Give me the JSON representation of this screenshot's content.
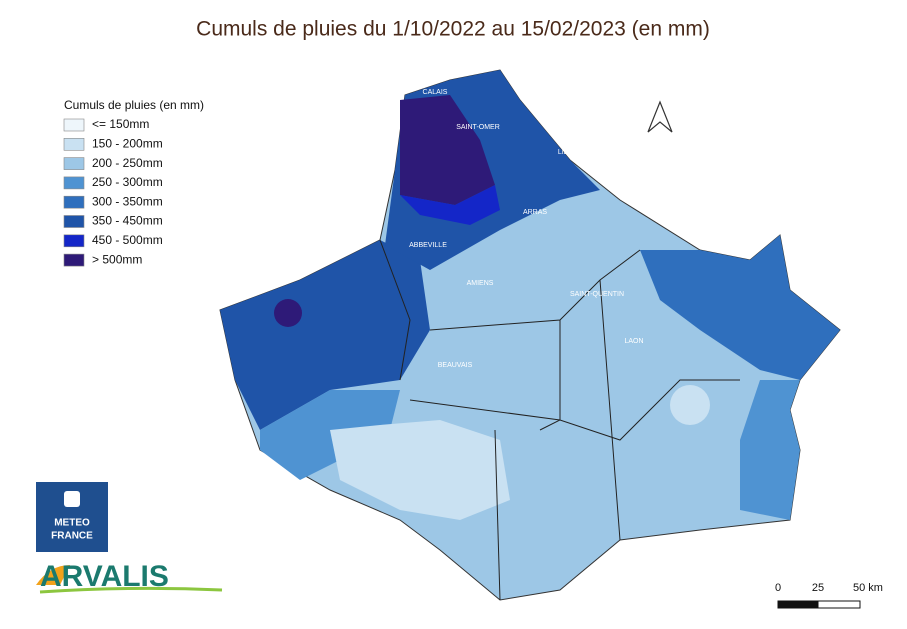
{
  "title": "Cumuls de pluies du 1/10/2022 au 15/02/2023 (en mm)",
  "legend": {
    "title": "Cumuls de pluies (en mm)",
    "items": [
      {
        "label": "<= 150mm",
        "color": "#eef6fb"
      },
      {
        "label": "150 - 200mm",
        "color": "#c9e1f2"
      },
      {
        "label": "200 - 250mm",
        "color": "#9dc7e6"
      },
      {
        "label": "250 - 300mm",
        "color": "#4f93d2"
      },
      {
        "label": "300 - 350mm",
        "color": "#2f6fbd"
      },
      {
        "label": "350 - 450mm",
        "color": "#1f54a8"
      },
      {
        "label": "450 - 500mm",
        "color": "#1426c8"
      },
      {
        "label": "> 500mm",
        "color": "#2e1a78"
      }
    ]
  },
  "cities": [
    "CALAIS",
    "SAINT-OMER",
    "LILLE",
    "ARRAS",
    "ABBEVILLE",
    "AMIENS",
    "SAINT-QUENTIN",
    "LAON",
    "BEAUVAIS"
  ],
  "scale": [
    "0",
    "25",
    "50 km"
  ],
  "logos": {
    "meteo": [
      "METEO",
      "FRANCE"
    ],
    "arvalis": "ARVALIS"
  }
}
